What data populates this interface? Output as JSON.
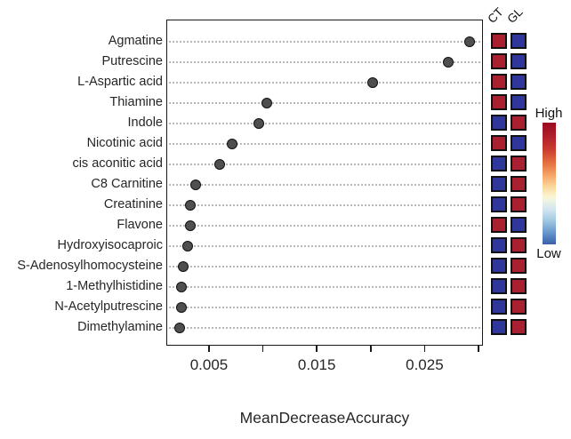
{
  "chart_data": [
    {
      "type": "scatter",
      "subtype": "dotchart",
      "title": "",
      "xlabel": "MeanDecreaseAccuracy",
      "ylabel": "",
      "categories": [
        "Agmatine",
        "Putrescine",
        "L-Aspartic acid",
        "Thiamine",
        "Indole",
        "Nicotinic acid",
        "cis aconitic acid",
        "C8 Carnitine",
        "Creatinine",
        "Flavone",
        "Hydroxyisocaproic",
        "S-Adenosylhomocysteine",
        "1-Methylhistidine",
        "N-Acetylputrescine",
        "Dimethylamine"
      ],
      "values": [
        0.0291,
        0.0271,
        0.0201,
        0.0103,
        0.0095,
        0.0071,
        0.0059,
        0.0037,
        0.0032,
        0.0032,
        0.0029,
        0.0025,
        0.0024,
        0.0024,
        0.0022
      ],
      "xlim": [
        0.0011,
        0.0304
      ],
      "x_ticks": [
        0.005,
        0.01,
        0.015,
        0.02,
        0.025,
        0.03
      ],
      "x_tick_labels": [
        "0.005",
        "",
        "0.015",
        "",
        "0.025",
        ""
      ],
      "grid": "horizontal dotted",
      "point_color": "#4f4f4f",
      "point_border_color": "#111111"
    },
    {
      "type": "heatmap",
      "columns": [
        "CT",
        "GL"
      ],
      "rows": [
        "Agmatine",
        "Putrescine",
        "L-Aspartic acid",
        "Thiamine",
        "Indole",
        "Nicotinic acid",
        "cis aconitic acid",
        "C8 Carnitine",
        "Creatinine",
        "Flavone",
        "Hydroxyisocaproic",
        "S-Adenosylhomocysteine",
        "1-Methylhistidine",
        "N-Acetylputrescine",
        "Dimethylamine"
      ],
      "cells": [
        [
          "high",
          "low"
        ],
        [
          "high",
          "low"
        ],
        [
          "high",
          "low"
        ],
        [
          "high",
          "low"
        ],
        [
          "low",
          "high"
        ],
        [
          "high",
          "low"
        ],
        [
          "low",
          "high"
        ],
        [
          "low",
          "high"
        ],
        [
          "low",
          "high"
        ],
        [
          "high",
          "low"
        ],
        [
          "low",
          "high"
        ],
        [
          "low",
          "high"
        ],
        [
          "low",
          "high"
        ],
        [
          "low",
          "high"
        ],
        [
          "low",
          "high"
        ]
      ],
      "colorscale": {
        "high_label": "High",
        "low_label": "Low",
        "high_color": "#a92030",
        "low_color": "#2f379b"
      },
      "legend_position": "right"
    }
  ]
}
